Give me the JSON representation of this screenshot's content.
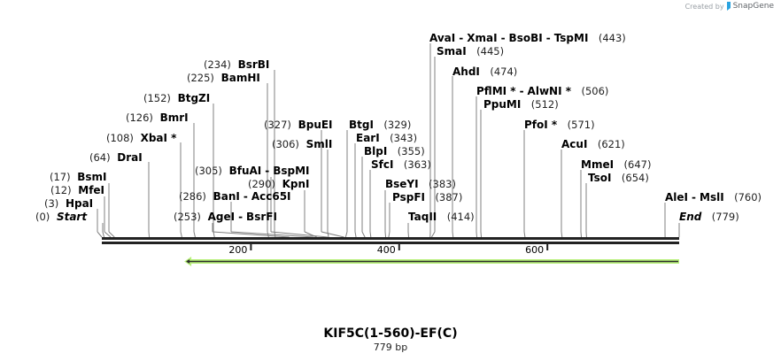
{
  "credit": {
    "prefix": "Created by",
    "brand": "SnapGene"
  },
  "sequence": {
    "name": "KIF5C(1-560)-EF(C)",
    "length_label": "779 bp",
    "length": 779
  },
  "ruler": {
    "ticks": [
      {
        "bp": 200,
        "label": "200"
      },
      {
        "bp": 400,
        "label": "400"
      },
      {
        "bp": 600,
        "label": "600"
      }
    ]
  },
  "feature": {
    "type": "reverse-arrow",
    "start": 116,
    "end": 779,
    "fill": "#b7f07a",
    "stroke": "#2c2c2c"
  },
  "colors": {
    "backbone": "#222222",
    "site_line": "#808080",
    "feature_fill": "#b7f07a"
  },
  "sites": [
    {
      "pos": "(0)",
      "names": [
        "Start"
      ],
      "bp": 0,
      "italic": true,
      "side": "left"
    },
    {
      "pos": "(3)",
      "names": [
        "HpaI"
      ],
      "bp": 3,
      "side": "left"
    },
    {
      "pos": "(12)",
      "names": [
        "MfeI"
      ],
      "bp": 12,
      "side": "left"
    },
    {
      "pos": "(17)",
      "names": [
        "BsmI"
      ],
      "bp": 17,
      "side": "left"
    },
    {
      "pos": "(64)",
      "names": [
        "DraI"
      ],
      "bp": 64,
      "side": "left"
    },
    {
      "pos": "(108)",
      "names": [
        "XbaI *"
      ],
      "bp": 108,
      "side": "left"
    },
    {
      "pos": "(126)",
      "names": [
        "BmrI"
      ],
      "bp": 126,
      "side": "left"
    },
    {
      "pos": "(152)",
      "names": [
        "BtgZI"
      ],
      "bp": 152,
      "side": "left"
    },
    {
      "pos": "(225)",
      "names": [
        "BamHI"
      ],
      "bp": 225,
      "side": "left"
    },
    {
      "pos": "(234)",
      "names": [
        "BsrBI"
      ],
      "bp": 234,
      "side": "left"
    },
    {
      "pos": "(253)",
      "names": [
        "AgeI",
        "BsrFI"
      ],
      "bp": 253,
      "side": "left"
    },
    {
      "pos": "(286)",
      "names": [
        "BanI",
        "Acc65I"
      ],
      "bp": 286,
      "side": "left"
    },
    {
      "pos": "(290)",
      "names": [
        "KpnI"
      ],
      "bp": 290,
      "side": "left"
    },
    {
      "pos": "(305)",
      "names": [
        "BfuAI",
        "BspMI"
      ],
      "bp": 305,
      "side": "left"
    },
    {
      "pos": "(306)",
      "names": [
        "SmlI"
      ],
      "bp": 306,
      "side": "left"
    },
    {
      "pos": "(327)",
      "names": [
        "BpuEI"
      ],
      "bp": 327,
      "side": "left"
    },
    {
      "pos": "(329)",
      "names": [
        "BtgI"
      ],
      "bp": 329,
      "side": "right"
    },
    {
      "pos": "(343)",
      "names": [
        "EarI"
      ],
      "bp": 343,
      "side": "right"
    },
    {
      "pos": "(355)",
      "names": [
        "BlpI"
      ],
      "bp": 355,
      "side": "right"
    },
    {
      "pos": "(363)",
      "names": [
        "SfcI"
      ],
      "bp": 363,
      "side": "right"
    },
    {
      "pos": "(383)",
      "names": [
        "BseYI"
      ],
      "bp": 383,
      "side": "right"
    },
    {
      "pos": "(387)",
      "names": [
        "PspFI"
      ],
      "bp": 387,
      "side": "right"
    },
    {
      "pos": "(414)",
      "names": [
        "TaqII"
      ],
      "bp": 414,
      "side": "right"
    },
    {
      "pos": "(443)",
      "names": [
        "AvaI",
        "XmaI",
        "BsoBI",
        "TspMI"
      ],
      "bp": 443,
      "side": "right"
    },
    {
      "pos": "(445)",
      "names": [
        "SmaI"
      ],
      "bp": 445,
      "side": "right"
    },
    {
      "pos": "(474)",
      "names": [
        "AhdI"
      ],
      "bp": 474,
      "side": "right"
    },
    {
      "pos": "(506)",
      "names": [
        "PflMI *",
        "AlwNI *"
      ],
      "bp": 506,
      "side": "right"
    },
    {
      "pos": "(512)",
      "names": [
        "PpuMI"
      ],
      "bp": 512,
      "side": "right"
    },
    {
      "pos": "(571)",
      "names": [
        "PfoI *"
      ],
      "bp": 571,
      "side": "right"
    },
    {
      "pos": "(621)",
      "names": [
        "AcuI"
      ],
      "bp": 621,
      "side": "right"
    },
    {
      "pos": "(647)",
      "names": [
        "MmeI"
      ],
      "bp": 647,
      "side": "right"
    },
    {
      "pos": "(654)",
      "names": [
        "TsoI"
      ],
      "bp": 654,
      "side": "right"
    },
    {
      "pos": "(760)",
      "names": [
        "AleI",
        "MslI"
      ],
      "bp": 760,
      "side": "right"
    },
    {
      "pos": "(779)",
      "names": [
        "End"
      ],
      "bp": 779,
      "italic": true,
      "side": "right"
    }
  ]
}
